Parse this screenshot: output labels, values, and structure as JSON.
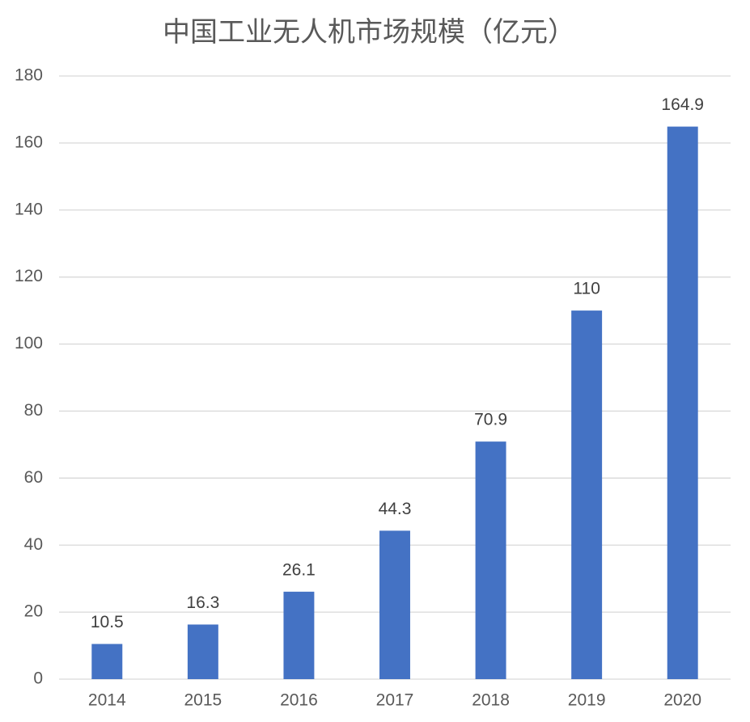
{
  "chart_data": {
    "type": "bar",
    "title": "中国工业无人机市场规模（亿元）",
    "categories": [
      "2014",
      "2015",
      "2016",
      "2017",
      "2018",
      "2019",
      "2020"
    ],
    "values": [
      10.5,
      16.3,
      26.1,
      44.3,
      70.9,
      110,
      164.9
    ],
    "color": "#4472c4",
    "ylim": [
      0,
      180
    ],
    "yticks": [
      0,
      20,
      40,
      60,
      80,
      100,
      120,
      140,
      160,
      180
    ],
    "grid": true,
    "data_labels": true
  }
}
